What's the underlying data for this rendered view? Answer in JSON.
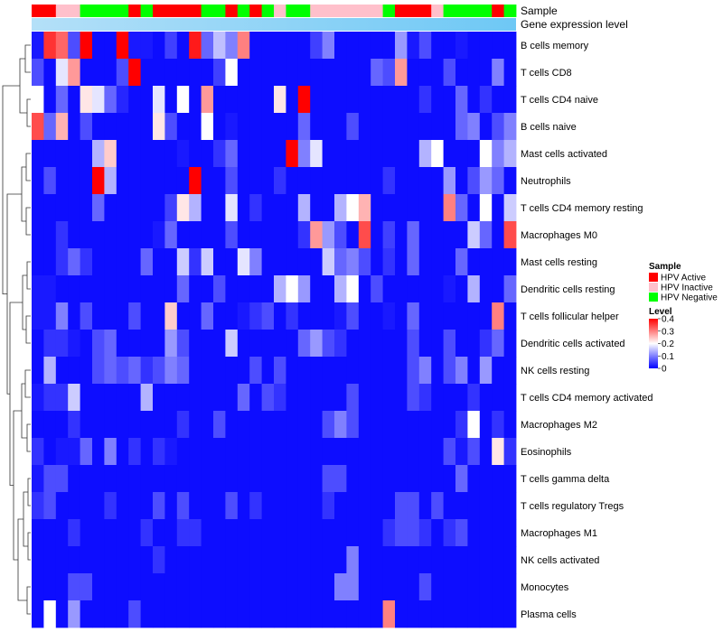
{
  "chart_data": {
    "type": "heatmap",
    "title": "",
    "annotation_rows": [
      "Sample",
      "Gene expression level"
    ],
    "sample_colors": {
      "HPV Active": "#ff0000",
      "HPV Inactive": "#ffc0cb",
      "HPV Negative": "#00ff00"
    },
    "sample_groups": [
      "HPV Active",
      "HPV Active",
      "HPV Inactive",
      "HPV Inactive",
      "HPV Negative",
      "HPV Negative",
      "HPV Negative",
      "HPV Negative",
      "HPV Active",
      "HPV Negative",
      "HPV Active",
      "HPV Active",
      "HPV Active",
      "HPV Active",
      "HPV Negative",
      "HPV Negative",
      "HPV Active",
      "HPV Negative",
      "HPV Active",
      "HPV Negative",
      "HPV Inactive",
      "HPV Negative",
      "HPV Negative",
      "HPV Inactive",
      "HPV Inactive",
      "HPV Inactive",
      "HPV Inactive",
      "HPV Inactive",
      "HPV Inactive",
      "HPV Negative",
      "HPV Active",
      "HPV Active",
      "HPV Active",
      "HPV Inactive",
      "HPV Negative",
      "HPV Negative",
      "HPV Negative",
      "HPV Negative",
      "HPV Active",
      "HPV Negative"
    ],
    "rows": [
      "B cells memory",
      "T cells CD8",
      "T cells CD4 naive",
      "B cells naive",
      "Mast cells activated",
      "Neutrophils",
      "T cells CD4 memory resting",
      "Macrophages M0",
      "Mast cells resting",
      "Dendritic cells resting",
      "T cells follicular helper",
      "Dendritic cells activated",
      "NK cells resting",
      "T cells CD4 memory activated",
      "Macrophages M2",
      "Eosinophils",
      "T cells gamma delta",
      "T cells regulatory  Tregs",
      "Macrophages M1",
      "NK cells activated",
      "Monocytes",
      "Plasma cells"
    ],
    "values": [
      [
        0.02,
        0.36,
        0.32,
        0.06,
        0.4,
        0.01,
        0.01,
        0.4,
        0.02,
        0.02,
        0.01,
        0.05,
        0.01,
        0.38,
        0.08,
        0.15,
        0.1,
        0.3,
        0.01,
        0.01,
        0.01,
        0.01,
        0.01,
        0.05,
        0.1,
        0.01,
        0.01,
        0.01,
        0.01,
        0.01,
        0.12,
        0.02,
        0.06,
        0.01,
        0.01,
        0.02,
        0.01,
        0.01,
        0.01,
        0.01
      ],
      [
        0.06,
        0.01,
        0.18,
        0.28,
        0.01,
        0.01,
        0.01,
        0.06,
        0.4,
        0.01,
        0.01,
        0.01,
        0.01,
        0.01,
        0.01,
        0.05,
        0.2,
        0.01,
        0.01,
        0.01,
        0.01,
        0.01,
        0.01,
        0.01,
        0.01,
        0.01,
        0.01,
        0.01,
        0.08,
        0.06,
        0.28,
        0.01,
        0.01,
        0.01,
        0.06,
        0.01,
        0.01,
        0.01,
        0.1,
        0.01
      ],
      [
        0.2,
        0.01,
        0.08,
        0.01,
        0.22,
        0.18,
        0.08,
        0.03,
        0.01,
        0.01,
        0.18,
        0.01,
        0.2,
        0.01,
        0.28,
        0.01,
        0.01,
        0.01,
        0.01,
        0.01,
        0.22,
        0.01,
        0.4,
        0.01,
        0.01,
        0.01,
        0.01,
        0.01,
        0.01,
        0.01,
        0.01,
        0.01,
        0.04,
        0.01,
        0.01,
        0.08,
        0.01,
        0.04,
        0.01,
        0.01
      ],
      [
        0.34,
        0.08,
        0.26,
        0.01,
        0.06,
        0.01,
        0.01,
        0.01,
        0.01,
        0.01,
        0.22,
        0.06,
        0.01,
        0.01,
        0.2,
        0.01,
        0.02,
        0.01,
        0.01,
        0.01,
        0.01,
        0.01,
        0.08,
        0.01,
        0.01,
        0.01,
        0.06,
        0.01,
        0.01,
        0.01,
        0.01,
        0.01,
        0.01,
        0.01,
        0.01,
        0.08,
        0.1,
        0.01,
        0.06,
        0.1
      ],
      [
        0.01,
        0.01,
        0.01,
        0.01,
        0.01,
        0.14,
        0.24,
        0.01,
        0.01,
        0.01,
        0.01,
        0.01,
        0.02,
        0.01,
        0.01,
        0.04,
        0.08,
        0.01,
        0.01,
        0.01,
        0.01,
        0.42,
        0.1,
        0.18,
        0.01,
        0.01,
        0.01,
        0.01,
        0.01,
        0.01,
        0.01,
        0.01,
        0.14,
        0.2,
        0.01,
        0.01,
        0.01,
        0.2,
        0.1,
        0.14
      ],
      [
        0.01,
        0.06,
        0.01,
        0.01,
        0.01,
        0.4,
        0.14,
        0.01,
        0.01,
        0.01,
        0.01,
        0.01,
        0.01,
        0.4,
        0.01,
        0.01,
        0.06,
        0.01,
        0.01,
        0.01,
        0.04,
        0.01,
        0.01,
        0.01,
        0.01,
        0.01,
        0.01,
        0.01,
        0.01,
        0.04,
        0.01,
        0.01,
        0.01,
        0.01,
        0.12,
        0.01,
        0.06,
        0.12,
        0.08,
        0.01
      ],
      [
        0.01,
        0.01,
        0.01,
        0.01,
        0.01,
        0.08,
        0.01,
        0.01,
        0.01,
        0.01,
        0.01,
        0.05,
        0.22,
        0.14,
        0.01,
        0.01,
        0.18,
        0.01,
        0.04,
        0.01,
        0.01,
        0.01,
        0.14,
        0.01,
        0.01,
        0.14,
        0.2,
        0.26,
        0.01,
        0.01,
        0.01,
        0.01,
        0.01,
        0.01,
        0.3,
        0.08,
        0.01,
        0.2,
        0.01,
        0.16
      ],
      [
        0.01,
        0.01,
        0.04,
        0.01,
        0.01,
        0.01,
        0.01,
        0.01,
        0.01,
        0.01,
        0.02,
        0.08,
        0.01,
        0.01,
        0.01,
        0.01,
        0.06,
        0.01,
        0.01,
        0.01,
        0.01,
        0.01,
        0.04,
        0.28,
        0.12,
        0.06,
        0.01,
        0.34,
        0.01,
        0.05,
        0.01,
        0.08,
        0.01,
        0.01,
        0.01,
        0.01,
        0.16,
        0.08,
        0.01,
        0.34
      ],
      [
        0.01,
        0.01,
        0.04,
        0.08,
        0.04,
        0.01,
        0.01,
        0.01,
        0.01,
        0.08,
        0.01,
        0.01,
        0.16,
        0.04,
        0.16,
        0.01,
        0.01,
        0.18,
        0.1,
        0.01,
        0.01,
        0.01,
        0.01,
        0.01,
        0.16,
        0.08,
        0.1,
        0.06,
        0.01,
        0.04,
        0.01,
        0.08,
        0.01,
        0.01,
        0.01,
        0.08,
        0.01,
        0.01,
        0.01,
        0.01
      ],
      [
        0.02,
        0.02,
        0.01,
        0.01,
        0.01,
        0.01,
        0.01,
        0.01,
        0.01,
        0.01,
        0.01,
        0.01,
        0.08,
        0.01,
        0.01,
        0.06,
        0.01,
        0.01,
        0.01,
        0.01,
        0.14,
        0.2,
        0.12,
        0.01,
        0.01,
        0.14,
        0.2,
        0.01,
        0.06,
        0.01,
        0.01,
        0.01,
        0.01,
        0.01,
        0.02,
        0.01,
        0.14,
        0.01,
        0.01,
        0.08
      ],
      [
        0.02,
        0.02,
        0.1,
        0.01,
        0.06,
        0.01,
        0.01,
        0.01,
        0.06,
        0.01,
        0.01,
        0.24,
        0.01,
        0.01,
        0.08,
        0.01,
        0.01,
        0.02,
        0.04,
        0.06,
        0.01,
        0.04,
        0.01,
        0.01,
        0.01,
        0.02,
        0.06,
        0.01,
        0.01,
        0.02,
        0.01,
        0.08,
        0.01,
        0.01,
        0.01,
        0.01,
        0.01,
        0.01,
        0.3,
        0.01
      ],
      [
        0.01,
        0.04,
        0.04,
        0.02,
        0.01,
        0.06,
        0.08,
        0.01,
        0.01,
        0.01,
        0.01,
        0.12,
        0.06,
        0.01,
        0.01,
        0.01,
        0.16,
        0.01,
        0.01,
        0.01,
        0.01,
        0.01,
        0.08,
        0.12,
        0.06,
        0.04,
        0.01,
        0.01,
        0.01,
        0.01,
        0.01,
        0.06,
        0.01,
        0.01,
        0.06,
        0.01,
        0.01,
        0.04,
        0.08,
        0.01
      ],
      [
        0.01,
        0.14,
        0.01,
        0.01,
        0.01,
        0.06,
        0.08,
        0.06,
        0.08,
        0.04,
        0.06,
        0.1,
        0.08,
        0.01,
        0.01,
        0.01,
        0.01,
        0.01,
        0.06,
        0.01,
        0.06,
        0.01,
        0.01,
        0.01,
        0.01,
        0.01,
        0.01,
        0.01,
        0.01,
        0.01,
        0.01,
        0.06,
        0.1,
        0.01,
        0.06,
        0.1,
        0.01,
        0.12,
        0.01,
        0.01
      ],
      [
        0.02,
        0.04,
        0.04,
        0.16,
        0.01,
        0.01,
        0.01,
        0.01,
        0.01,
        0.14,
        0.01,
        0.01,
        0.01,
        0.01,
        0.01,
        0.01,
        0.01,
        0.08,
        0.01,
        0.06,
        0.04,
        0.01,
        0.01,
        0.01,
        0.01,
        0.01,
        0.06,
        0.01,
        0.01,
        0.01,
        0.01,
        0.06,
        0.04,
        0.01,
        0.01,
        0.01,
        0.04,
        0.01,
        0.01,
        0.01
      ],
      [
        0.01,
        0.01,
        0.01,
        0.04,
        0.01,
        0.01,
        0.01,
        0.01,
        0.01,
        0.01,
        0.01,
        0.01,
        0.04,
        0.01,
        0.01,
        0.06,
        0.01,
        0.01,
        0.01,
        0.01,
        0.01,
        0.01,
        0.01,
        0.01,
        0.06,
        0.1,
        0.06,
        0.01,
        0.01,
        0.01,
        0.01,
        0.01,
        0.01,
        0.01,
        0.01,
        0.04,
        0.2,
        0.01,
        0.04,
        0.01
      ],
      [
        0.04,
        0.01,
        0.02,
        0.02,
        0.08,
        0.01,
        0.1,
        0.01,
        0.04,
        0.01,
        0.04,
        0.02,
        0.01,
        0.01,
        0.01,
        0.01,
        0.01,
        0.01,
        0.01,
        0.01,
        0.01,
        0.01,
        0.01,
        0.01,
        0.01,
        0.01,
        0.01,
        0.01,
        0.01,
        0.01,
        0.01,
        0.01,
        0.01,
        0.01,
        0.06,
        0.02,
        0.06,
        0.01,
        0.22,
        0.04
      ],
      [
        0.02,
        0.06,
        0.06,
        0.01,
        0.01,
        0.01,
        0.01,
        0.01,
        0.01,
        0.01,
        0.01,
        0.01,
        0.01,
        0.01,
        0.01,
        0.01,
        0.01,
        0.01,
        0.01,
        0.01,
        0.01,
        0.01,
        0.01,
        0.01,
        0.06,
        0.06,
        0.01,
        0.01,
        0.01,
        0.01,
        0.01,
        0.01,
        0.01,
        0.01,
        0.01,
        0.08,
        0.01,
        0.01,
        0.01,
        0.01
      ],
      [
        0.04,
        0.06,
        0.01,
        0.01,
        0.01,
        0.01,
        0.04,
        0.01,
        0.01,
        0.01,
        0.06,
        0.01,
        0.06,
        0.01,
        0.01,
        0.01,
        0.06,
        0.01,
        0.04,
        0.01,
        0.01,
        0.01,
        0.01,
        0.01,
        0.04,
        0.01,
        0.01,
        0.01,
        0.01,
        0.01,
        0.06,
        0.06,
        0.01,
        0.06,
        0.01,
        0.01,
        0.01,
        0.01,
        0.01,
        0.01
      ],
      [
        0.01,
        0.01,
        0.01,
        0.04,
        0.01,
        0.01,
        0.01,
        0.01,
        0.01,
        0.04,
        0.01,
        0.01,
        0.04,
        0.04,
        0.01,
        0.01,
        0.01,
        0.01,
        0.01,
        0.01,
        0.01,
        0.01,
        0.01,
        0.01,
        0.01,
        0.01,
        0.01,
        0.01,
        0.01,
        0.04,
        0.06,
        0.06,
        0.04,
        0.01,
        0.04,
        0.06,
        0.01,
        0.01,
        0.01,
        0.01
      ],
      [
        0.01,
        0.01,
        0.01,
        0.01,
        0.01,
        0.01,
        0.01,
        0.01,
        0.01,
        0.01,
        0.04,
        0.01,
        0.01,
        0.01,
        0.01,
        0.01,
        0.01,
        0.01,
        0.01,
        0.01,
        0.01,
        0.01,
        0.01,
        0.01,
        0.01,
        0.01,
        0.1,
        0.01,
        0.01,
        0.01,
        0.01,
        0.01,
        0.01,
        0.01,
        0.01,
        0.01,
        0.01,
        0.01,
        0.01,
        0.01
      ],
      [
        0.01,
        0.01,
        0.01,
        0.06,
        0.06,
        0.01,
        0.01,
        0.01,
        0.01,
        0.01,
        0.01,
        0.01,
        0.01,
        0.01,
        0.01,
        0.01,
        0.01,
        0.01,
        0.01,
        0.01,
        0.01,
        0.01,
        0.01,
        0.01,
        0.01,
        0.1,
        0.1,
        0.01,
        0.01,
        0.01,
        0.01,
        0.01,
        0.06,
        0.01,
        0.01,
        0.01,
        0.01,
        0.01,
        0.01,
        0.01
      ],
      [
        0.01,
        0.2,
        0.01,
        0.12,
        0.01,
        0.01,
        0.01,
        0.01,
        0.06,
        0.01,
        0.01,
        0.01,
        0.01,
        0.01,
        0.01,
        0.01,
        0.01,
        0.01,
        0.01,
        0.01,
        0.01,
        0.01,
        0.01,
        0.01,
        0.01,
        0.01,
        0.01,
        0.01,
        0.01,
        0.3,
        0.01,
        0.01,
        0.01,
        0.01,
        0.01,
        0.01,
        0.01,
        0.01,
        0.01,
        0.01
      ]
    ],
    "color_scale": {
      "min": 0,
      "mid": 0.2,
      "max": 0.4,
      "low_color": "#0000ff",
      "mid_color": "#ffffff",
      "high_color": "#ff0000"
    },
    "legend": {
      "sample_title": "Sample",
      "sample_entries": [
        "HPV Active",
        "HPV Inactive",
        "HPV Negative"
      ],
      "level_title": "Level",
      "level_ticks": [
        "0.4",
        "0.3",
        "0.2",
        "0.1",
        "0"
      ],
      "placement": "right"
    },
    "row_dendrogram": true,
    "expression_gradient": {
      "from": "#b4e0f8",
      "to": "#6ec8f5"
    }
  }
}
